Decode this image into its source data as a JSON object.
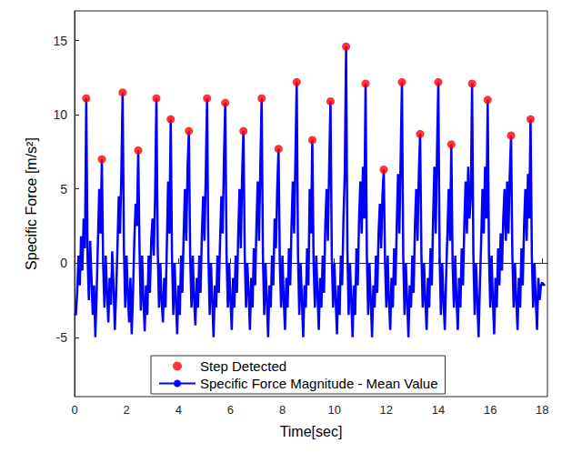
{
  "chart_data": {
    "type": "line",
    "x_label": "Time[sec]",
    "y_label": "Specific Force [m/s²]",
    "xlim": [
      0,
      18.2
    ],
    "xticks": [
      0,
      2,
      4,
      6,
      8,
      10,
      12,
      14,
      16,
      18
    ],
    "ylim": [
      -9,
      17
    ],
    "yticks": [
      -5,
      0,
      5,
      10,
      15
    ],
    "grid": false,
    "legend": "bottom",
    "series": [
      {
        "name": "Step Detected",
        "type": "scatter",
        "color": "#ff0000",
        "marker": "circle",
        "x": [
          0.45,
          1.05,
          1.85,
          2.45,
          3.15,
          3.7,
          4.4,
          5.1,
          5.8,
          6.5,
          7.2,
          7.85,
          8.55,
          9.15,
          9.85,
          10.45,
          11.2,
          11.9,
          12.6,
          13.3,
          14.0,
          14.5,
          15.3,
          15.9,
          16.8,
          17.55
        ],
        "values": [
          11.1,
          7.0,
          11.5,
          7.6,
          11.1,
          9.7,
          8.9,
          11.1,
          10.8,
          8.9,
          11.1,
          7.7,
          12.2,
          8.3,
          10.9,
          14.6,
          12.1,
          6.3,
          12.2,
          8.7,
          12.2,
          8.0,
          12.1,
          11.0,
          8.6,
          9.7
        ]
      },
      {
        "name": "Specific Force Magnitude - Mean Value",
        "type": "line",
        "color": "#0000ff",
        "line_style": "solid",
        "x": [
          0,
          0.05,
          0.1,
          0.15,
          0.2,
          0.25,
          0.3,
          0.35,
          0.4,
          0.45,
          0.5,
          0.55,
          0.6,
          0.65,
          0.7,
          0.75,
          0.8,
          0.85,
          0.9,
          0.95,
          1.0,
          1.05,
          1.1,
          1.15,
          1.2,
          1.25,
          1.3,
          1.35,
          1.4,
          1.45,
          1.5,
          1.55,
          1.6,
          1.65,
          1.7,
          1.75,
          1.8,
          1.85,
          1.9,
          1.95,
          2.0,
          2.05,
          2.1,
          2.15,
          2.2,
          2.25,
          2.3,
          2.35,
          2.4,
          2.45,
          2.5,
          2.55,
          2.6,
          2.65,
          2.7,
          2.75,
          2.8,
          2.85,
          2.9,
          2.95,
          3.0,
          3.05,
          3.1,
          3.15,
          3.2,
          3.25,
          3.3,
          3.35,
          3.4,
          3.45,
          3.5,
          3.55,
          3.6,
          3.65,
          3.7,
          3.75,
          3.8,
          3.85,
          3.9,
          3.95,
          4.0,
          4.05,
          4.1,
          4.15,
          4.2,
          4.25,
          4.3,
          4.35,
          4.4,
          4.45,
          4.5,
          4.55,
          4.6,
          4.65,
          4.7,
          4.75,
          4.8,
          4.85,
          4.9,
          4.95,
          5.0,
          5.05,
          5.1,
          5.15,
          5.2,
          5.25,
          5.3,
          5.35,
          5.4,
          5.45,
          5.5,
          5.55,
          5.6,
          5.65,
          5.7,
          5.75,
          5.8,
          5.85,
          5.9,
          5.95,
          6.0,
          6.05,
          6.1,
          6.15,
          6.2,
          6.25,
          6.3,
          6.35,
          6.4,
          6.45,
          6.5,
          6.55,
          6.6,
          6.65,
          6.7,
          6.75,
          6.8,
          6.85,
          6.9,
          6.95,
          7.0,
          7.05,
          7.1,
          7.15,
          7.2,
          7.25,
          7.3,
          7.35,
          7.4,
          7.45,
          7.5,
          7.55,
          7.6,
          7.65,
          7.7,
          7.75,
          7.8,
          7.85,
          7.9,
          7.95,
          8.0,
          8.05,
          8.1,
          8.15,
          8.2,
          8.25,
          8.3,
          8.35,
          8.4,
          8.45,
          8.5,
          8.55,
          8.6,
          8.65,
          8.7,
          8.75,
          8.8,
          8.85,
          8.9,
          8.95,
          9.0,
          9.05,
          9.1,
          9.15,
          9.2,
          9.25,
          9.3,
          9.35,
          9.4,
          9.45,
          9.5,
          9.55,
          9.6,
          9.65,
          9.7,
          9.75,
          9.8,
          9.85,
          9.9,
          9.95,
          10.0,
          10.05,
          10.1,
          10.15,
          10.2,
          10.25,
          10.3,
          10.35,
          10.4,
          10.45,
          10.5,
          10.55,
          10.6,
          10.65,
          10.7,
          10.75,
          10.8,
          10.85,
          10.9,
          10.95,
          11.0,
          11.05,
          11.1,
          11.15,
          11.2,
          11.25,
          11.3,
          11.35,
          11.4,
          11.45,
          11.5,
          11.55,
          11.6,
          11.65,
          11.7,
          11.75,
          11.8,
          11.85,
          11.9,
          11.95,
          12.0,
          12.05,
          12.1,
          12.15,
          12.2,
          12.25,
          12.3,
          12.35,
          12.4,
          12.45,
          12.5,
          12.55,
          12.6,
          12.65,
          12.7,
          12.75,
          12.8,
          12.85,
          12.9,
          12.95,
          13.0,
          13.05,
          13.1,
          13.15,
          13.2,
          13.25,
          13.3,
          13.35,
          13.4,
          13.45,
          13.5,
          13.55,
          13.6,
          13.65,
          13.7,
          13.75,
          13.8,
          13.85,
          13.9,
          13.95,
          14.0,
          14.05,
          14.1,
          14.15,
          14.2,
          14.25,
          14.3,
          14.35,
          14.4,
          14.45,
          14.5,
          14.55,
          14.6,
          14.65,
          14.7,
          14.75,
          14.8,
          14.85,
          14.9,
          14.95,
          15.0,
          15.05,
          15.1,
          15.15,
          15.2,
          15.25,
          15.3,
          15.35,
          15.4,
          15.45,
          15.5,
          15.55,
          15.6,
          15.65,
          15.7,
          15.75,
          15.8,
          15.85,
          15.9,
          15.95,
          16.0,
          16.05,
          16.1,
          16.15,
          16.2,
          16.25,
          16.3,
          16.35,
          16.4,
          16.45,
          16.5,
          16.55,
          16.6,
          16.65,
          16.7,
          16.75,
          16.8,
          16.85,
          16.9,
          16.95,
          17.0,
          17.05,
          17.1,
          17.15,
          17.2,
          17.25,
          17.3,
          17.35,
          17.4,
          17.45,
          17.5,
          17.55,
          17.6,
          17.65,
          17.7,
          17.75,
          17.8,
          17.85,
          17.9,
          17.95,
          18.0,
          18.05,
          18.1
        ],
        "values": [
          -3.4,
          -3.5,
          -2.0,
          0.5,
          -1.5,
          1.8,
          -0.5,
          3.0,
          1.0,
          11.1,
          0.5,
          -2.5,
          1.5,
          -1.0,
          -3.5,
          -1.5,
          -5.0,
          -2.0,
          1.5,
          5.0,
          2.0,
          7.0,
          0.0,
          -3.0,
          0.5,
          -2.0,
          -4.0,
          -1.0,
          -2.8,
          0.8,
          -1.5,
          -4.5,
          -2.0,
          1.0,
          4.5,
          2.0,
          6.0,
          11.5,
          1.0,
          -3.0,
          0.5,
          -2.0,
          -4.0,
          -1.0,
          -4.8,
          -2.0,
          1.5,
          4.0,
          2.5,
          7.6,
          1.0,
          -3.2,
          0.5,
          -2.5,
          -4.6,
          -1.5,
          -3.5,
          0.5,
          -2.0,
          1.5,
          3.0,
          0.5,
          4.5,
          11.1,
          1.0,
          -3.0,
          0.0,
          -2.5,
          -4.0,
          -1.0,
          -3.0,
          1.0,
          5.5,
          2.0,
          9.7,
          0.5,
          -3.5,
          0.0,
          -2.5,
          -4.8,
          -1.5,
          -3.5,
          0.5,
          -2.0,
          2.0,
          5.0,
          1.5,
          6.5,
          8.9,
          0.5,
          -3.0,
          0.5,
          -2.5,
          -4.2,
          -1.0,
          -3.0,
          0.5,
          -2.0,
          2.0,
          4.5,
          1.5,
          6.0,
          11.1,
          0.5,
          -3.5,
          0.0,
          -2.5,
          -5.0,
          -1.5,
          -3.0,
          0.5,
          -2.0,
          1.5,
          4.5,
          2.0,
          7.0,
          10.8,
          0.5,
          -3.0,
          0.0,
          -2.5,
          -4.5,
          -1.0,
          -3.0,
          0.5,
          -2.0,
          2.0,
          5.0,
          1.0,
          6.0,
          8.9,
          0.5,
          -3.0,
          0.0,
          -2.0,
          -4.5,
          -1.0,
          -3.0,
          1.0,
          -1.5,
          2.5,
          5.5,
          1.5,
          6.5,
          11.1,
          0.5,
          -3.5,
          0.0,
          -2.5,
          -5.0,
          -1.5,
          -3.0,
          0.5,
          -1.5,
          3.0,
          1.0,
          5.0,
          7.7,
          0.0,
          -3.0,
          0.5,
          -2.5,
          -4.5,
          -1.0,
          -3.0,
          1.0,
          -1.5,
          2.5,
          5.5,
          2.0,
          7.0,
          12.2,
          0.5,
          -3.5,
          0.0,
          -2.5,
          -5.0,
          -1.5,
          -3.0,
          1.0,
          -1.5,
          5.0,
          2.0,
          8.3,
          0.0,
          -3.0,
          0.5,
          -2.0,
          -4.5,
          -1.0,
          -3.0,
          0.5,
          -2.0,
          2.5,
          5.0,
          1.5,
          6.5,
          10.9,
          0.5,
          -3.0,
          0.0,
          -2.5,
          -4.8,
          -1.5,
          -3.5,
          0.5,
          -1.5,
          3.0,
          6.0,
          14.6,
          1.0,
          -3.5,
          0.0,
          -2.5,
          -5.0,
          -1.5,
          -3.5,
          1.0,
          -1.5,
          3.0,
          5.5,
          2.0,
          6.5,
          3.0,
          12.1,
          0.5,
          -3.5,
          0.0,
          -2.5,
          -5.0,
          -1.5,
          -3.0,
          0.5,
          -2.0,
          2.0,
          4.0,
          1.0,
          4.5,
          6.3,
          0.0,
          -3.0,
          0.5,
          -2.5,
          -4.5,
          -1.0,
          -3.0,
          1.0,
          -1.5,
          2.5,
          6.0,
          2.0,
          7.0,
          12.2,
          0.5,
          -3.5,
          0.0,
          -2.5,
          -5.0,
          -1.5,
          -3.0,
          0.5,
          -2.0,
          2.5,
          5.0,
          1.5,
          6.0,
          8.7,
          0.5,
          -3.0,
          0.0,
          -2.5,
          -4.5,
          -1.0,
          -3.0,
          1.0,
          -1.5,
          3.0,
          6.5,
          2.0,
          7.5,
          12.2,
          0.5,
          -3.5,
          0.0,
          -2.5,
          -4.5,
          -1.0,
          2.0,
          5.0,
          1.5,
          8.0,
          0.0,
          -3.0,
          0.5,
          -2.5,
          -4.5,
          -1.0,
          -3.0,
          1.0,
          -1.5,
          2.5,
          5.5,
          2.0,
          6.5,
          3.0,
          4.5,
          12.1,
          0.5,
          -3.5,
          0.0,
          -2.5,
          -5.0,
          -1.5,
          1.5,
          5.0,
          2.0,
          6.5,
          3.0,
          11.0,
          0.5,
          -3.0,
          0.5,
          -2.5,
          -4.8,
          -1.0,
          -3.0,
          1.0,
          -1.5,
          2.0,
          -0.5,
          3.0,
          5.0,
          1.5,
          5.5,
          2.0,
          6.0,
          8.6,
          0.5,
          -3.0,
          0.0,
          -2.5,
          -4.5,
          -1.0,
          -3.0,
          1.0,
          -1.5,
          2.5,
          5.0,
          1.5,
          6.0,
          3.0,
          9.7,
          0.5,
          -3.0,
          0.0,
          -2.5,
          -4.5,
          -1.0,
          -2.5,
          -1.5,
          -1.3,
          -1.5,
          -1.4
        ]
      }
    ]
  }
}
